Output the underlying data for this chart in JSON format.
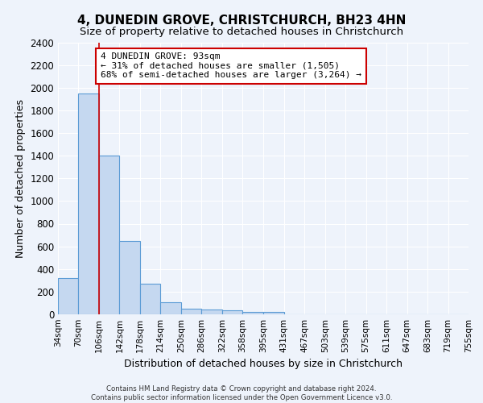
{
  "title": "4, DUNEDIN GROVE, CHRISTCHURCH, BH23 4HN",
  "subtitle": "Size of property relative to detached houses in Christchurch",
  "xlabel": "Distribution of detached houses by size in Christchurch",
  "ylabel": "Number of detached properties",
  "bar_values": [
    320,
    1950,
    1400,
    650,
    270,
    105,
    50,
    45,
    35,
    20,
    20,
    0,
    0,
    0,
    0,
    0,
    0,
    0,
    0,
    0
  ],
  "bin_labels": [
    "34sqm",
    "70sqm",
    "106sqm",
    "142sqm",
    "178sqm",
    "214sqm",
    "250sqm",
    "286sqm",
    "322sqm",
    "358sqm",
    "395sqm",
    "431sqm",
    "467sqm",
    "503sqm",
    "539sqm",
    "575sqm",
    "611sqm",
    "647sqm",
    "683sqm",
    "719sqm",
    "755sqm"
  ],
  "bin_edges": [
    34,
    70,
    106,
    142,
    178,
    214,
    250,
    286,
    322,
    358,
    395,
    431,
    467,
    503,
    539,
    575,
    611,
    647,
    683,
    719,
    755
  ],
  "bar_color": "#c5d8f0",
  "bar_edge_color": "#5b9bd5",
  "property_line_x": 106,
  "annotation_text": "4 DUNEDIN GROVE: 93sqm\n← 31% of detached houses are smaller (1,505)\n68% of semi-detached houses are larger (3,264) →",
  "annotation_box_color": "#ffffff",
  "annotation_box_edge": "#cc0000",
  "vline_color": "#cc0000",
  "ylim": [
    0,
    2400
  ],
  "yticks": [
    0,
    200,
    400,
    600,
    800,
    1000,
    1200,
    1400,
    1600,
    1800,
    2000,
    2200,
    2400
  ],
  "background_color": "#eef3fb",
  "grid_color": "#ffffff",
  "footer": "Contains HM Land Registry data © Crown copyright and database right 2024.\nContains public sector information licensed under the Open Government Licence v3.0.",
  "title_fontsize": 11,
  "subtitle_fontsize": 9.5,
  "xlabel_fontsize": 9,
  "ylabel_fontsize": 9,
  "annot_fontsize": 8
}
